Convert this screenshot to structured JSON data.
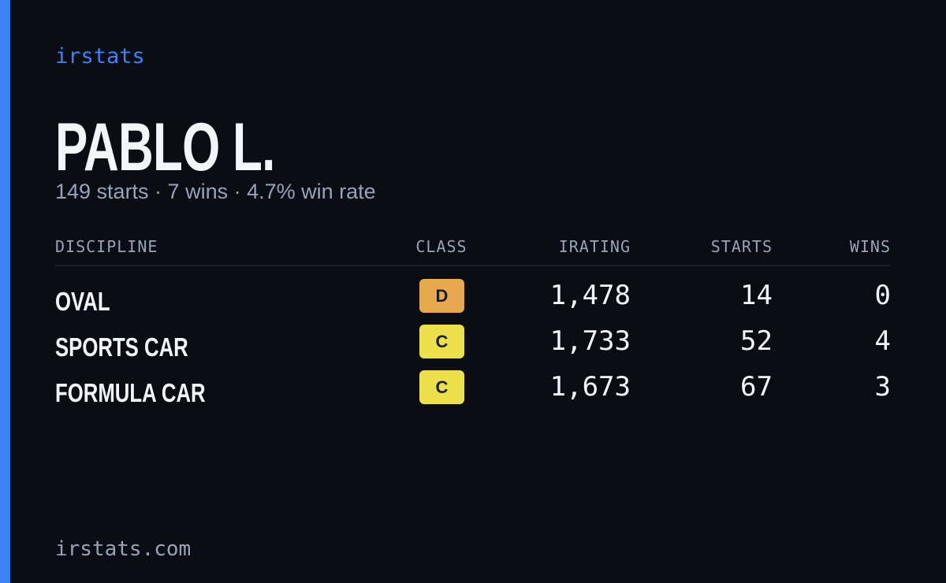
{
  "header": {
    "brand": "irstats"
  },
  "driver": {
    "name": "PABLO L.",
    "summary": "149 starts · 7 wins · 4.7% win rate"
  },
  "table": {
    "columns": [
      "DISCIPLINE",
      "CLASS",
      "IRATING",
      "STARTS",
      "WINS"
    ],
    "rows": [
      [
        "OVAL",
        "D",
        "1,478",
        "14",
        "0"
      ],
      [
        "SPORTS CAR",
        "C",
        "1,733",
        "52",
        "4"
      ],
      [
        "FORMULA CAR",
        "C",
        "1,673",
        "67",
        "3"
      ]
    ],
    "badge_colors": [
      "#e8a94c",
      "#ece04b",
      "#ece04b"
    ]
  },
  "footer": {
    "site": "irstats.com"
  }
}
